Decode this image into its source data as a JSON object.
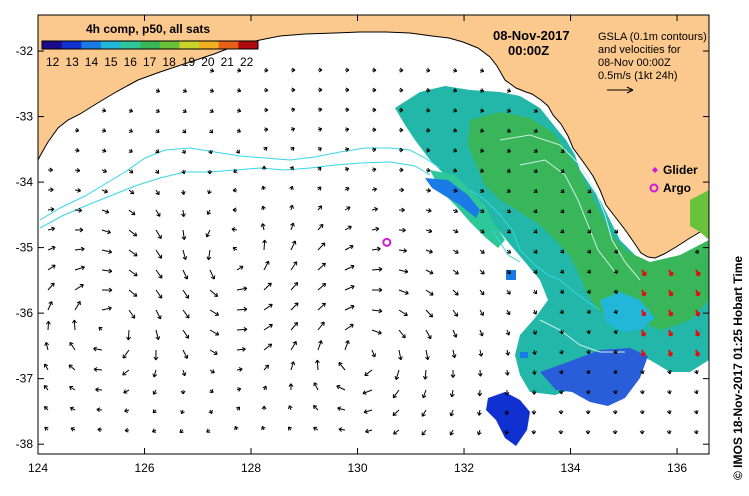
{
  "colorbar": {
    "title": "4h comp, p50, all sats",
    "labels": [
      "12",
      "13",
      "14",
      "15",
      "16",
      "17",
      "18",
      "19",
      "20",
      "21",
      "22"
    ],
    "colors": [
      "#1a0a8c",
      "#1030d0",
      "#1a7ae6",
      "#22b7d8",
      "#2ec79a",
      "#3ab65a",
      "#6ac23a",
      "#c8d42a",
      "#f0b020",
      "#e86018",
      "#b00a10"
    ]
  },
  "header": {
    "date": "08-Nov-2017",
    "time": "00:00Z"
  },
  "note": {
    "line1": "GSLA (0.1m contours)",
    "line2": "and velocities for",
    "line3": "08-Nov 00:00Z",
    "line4": "0.5m/s (1kt 24h)"
  },
  "legend": {
    "glider": "Glider",
    "argo": "Argo"
  },
  "credit": "© IMOS 18-Nov-2017 01:25 Hobart Time",
  "axes": {
    "x_ticks": [
      "124",
      "126",
      "128",
      "130",
      "132",
      "134",
      "136"
    ],
    "y_ticks": [
      "-32",
      "-33",
      "-34",
      "-35",
      "-36",
      "-37",
      "-38"
    ],
    "lon_range": [
      124,
      136.6
    ],
    "lat_range": [
      -38.15,
      -31.45
    ]
  },
  "markers": {
    "argo": {
      "lon": 130.55,
      "lat": -34.92
    }
  },
  "style": {
    "land": "#fbc98e",
    "ocean": "#ffffff",
    "contour": "#37d6e6",
    "argo": "#d01ad6",
    "red_vectors": "#e01010"
  }
}
